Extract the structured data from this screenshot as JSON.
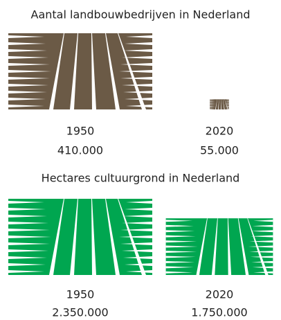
{
  "chart_data": [
    {
      "type": "pictogram",
      "title": "Aantal landbouwbedrijven in Nederland",
      "categories": [
        "1950",
        "2020"
      ],
      "values": [
        410000,
        55000
      ],
      "value_labels": [
        "410.000",
        "55.000"
      ],
      "color": "#6b5a46"
    },
    {
      "type": "pictogram",
      "title": "Hectares cultuurgrond in Nederland",
      "categories": [
        "1950",
        "2020"
      ],
      "values": [
        2350000,
        1750000
      ],
      "value_labels": [
        "2.350.000",
        "1.750.000"
      ],
      "color": "#00a650"
    }
  ]
}
